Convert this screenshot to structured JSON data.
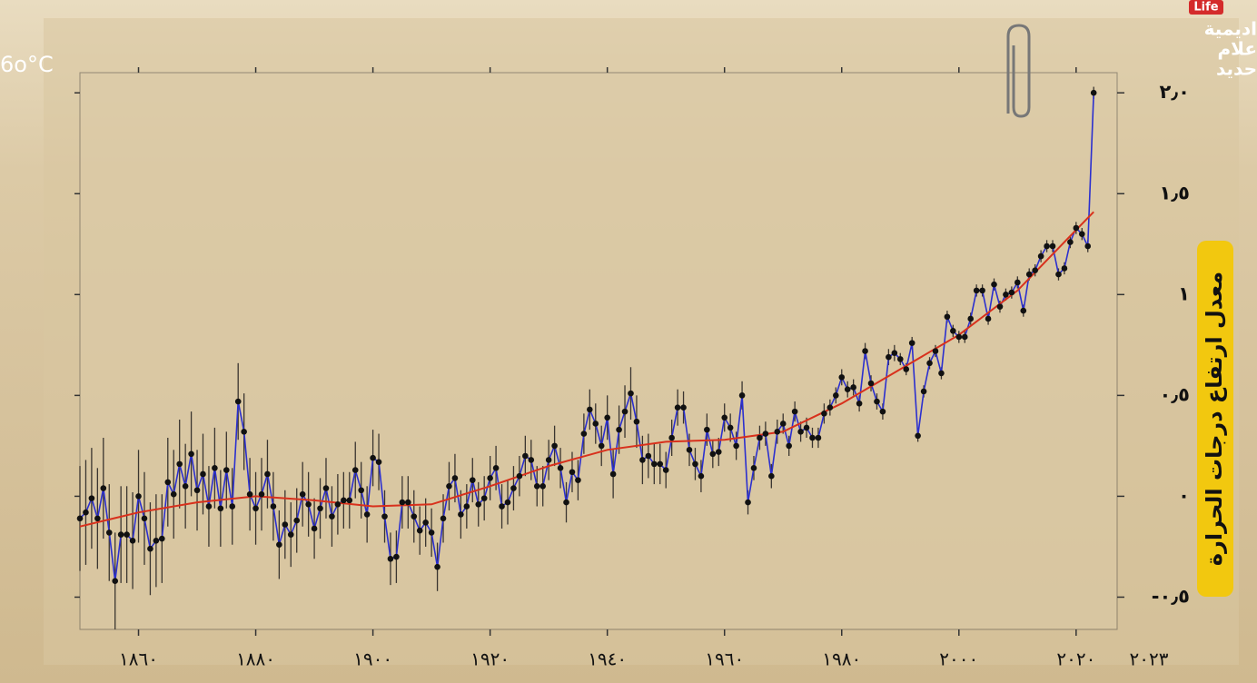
{
  "corner_label": "6o°C",
  "logo": {
    "badge": "Life",
    "lines": [
      "اديمية",
      "علام",
      "حديد"
    ]
  },
  "chart_data": {
    "type": "line",
    "ylabel": "معدل ارتفاع درجات الحرارة",
    "annotations": [
      "٢٠٢٣"
    ],
    "xlim": [
      1850,
      2027
    ],
    "ylim": [
      -0.66,
      2.1
    ],
    "xticks": [
      {
        "value": 1860,
        "label": "١٨٦٠"
      },
      {
        "value": 1880,
        "label": "١٨٨٠"
      },
      {
        "value": 1900,
        "label": "١٩٠٠"
      },
      {
        "value": 1920,
        "label": "١٩٢٠"
      },
      {
        "value": 1940,
        "label": "١٩٤٠"
      },
      {
        "value": 1960,
        "label": "١٩٦٠"
      },
      {
        "value": 1980,
        "label": "١٩٨٠"
      },
      {
        "value": 2000,
        "label": "٢٠٠٠"
      },
      {
        "value": 2020,
        "label": "٢٠٢٠"
      }
    ],
    "yticks": [
      {
        "value": -0.5,
        "label": "-٠٫٥"
      },
      {
        "value": 0,
        "label": "٠"
      },
      {
        "value": 0.5,
        "label": "٠٫٥"
      },
      {
        "value": 1,
        "label": "١"
      },
      {
        "value": 1.5,
        "label": "١٫٥"
      },
      {
        "value": 2,
        "label": "٢٫٠"
      }
    ],
    "series": [
      {
        "color": "#2b2fcf",
        "marker_color": "#111111",
        "error_color": "#3a3530",
        "x": [
          1850,
          1851,
          1852,
          1853,
          1854,
          1855,
          1856,
          1857,
          1858,
          1859,
          1860,
          1861,
          1862,
          1863,
          1864,
          1865,
          1866,
          1867,
          1868,
          1869,
          1870,
          1871,
          1872,
          1873,
          1874,
          1875,
          1876,
          1877,
          1878,
          1879,
          1880,
          1881,
          1882,
          1883,
          1884,
          1885,
          1886,
          1887,
          1888,
          1889,
          1890,
          1891,
          1892,
          1893,
          1894,
          1895,
          1896,
          1897,
          1898,
          1899,
          1900,
          1901,
          1902,
          1903,
          1904,
          1905,
          1906,
          1907,
          1908,
          1909,
          1910,
          1911,
          1912,
          1913,
          1914,
          1915,
          1916,
          1917,
          1918,
          1919,
          1920,
          1921,
          1922,
          1923,
          1924,
          1925,
          1926,
          1927,
          1928,
          1929,
          1930,
          1931,
          1932,
          1933,
          1934,
          1935,
          1936,
          1937,
          1938,
          1939,
          1940,
          1941,
          1942,
          1943,
          1944,
          1945,
          1946,
          1947,
          1948,
          1949,
          1950,
          1951,
          1952,
          1953,
          1954,
          1955,
          1956,
          1957,
          1958,
          1959,
          1960,
          1961,
          1962,
          1963,
          1964,
          1965,
          1966,
          1967,
          1968,
          1969,
          1970,
          1971,
          1972,
          1973,
          1974,
          1975,
          1976,
          1977,
          1978,
          1979,
          1980,
          1981,
          1982,
          1983,
          1984,
          1985,
          1986,
          1987,
          1988,
          1989,
          1990,
          1991,
          1992,
          1993,
          1994,
          1995,
          1996,
          1997,
          1998,
          1999,
          2000,
          2001,
          2002,
          2003,
          2004,
          2005,
          2006,
          2007,
          2008,
          2009,
          2010,
          2011,
          2012,
          2013,
          2014,
          2015,
          2016,
          2017,
          2018,
          2019,
          2020,
          2021,
          2022,
          2023
        ],
        "values": [
          -0.11,
          -0.08,
          -0.01,
          -0.11,
          0.04,
          -0.18,
          -0.42,
          -0.19,
          -0.19,
          -0.22,
          0.0,
          -0.11,
          -0.26,
          -0.22,
          -0.21,
          0.07,
          0.01,
          0.16,
          0.05,
          0.21,
          0.03,
          0.11,
          -0.05,
          0.14,
          -0.06,
          0.13,
          -0.05,
          0.47,
          0.32,
          0.01,
          -0.06,
          0.01,
          0.11,
          -0.05,
          -0.24,
          -0.14,
          -0.19,
          -0.12,
          0.01,
          -0.04,
          -0.16,
          -0.06,
          0.04,
          -0.1,
          -0.04,
          -0.02,
          -0.02,
          0.13,
          0.03,
          -0.09,
          0.19,
          0.17,
          -0.1,
          -0.31,
          -0.3,
          -0.03,
          -0.03,
          -0.1,
          -0.17,
          -0.13,
          -0.18,
          -0.35,
          -0.11,
          0.05,
          0.09,
          -0.09,
          -0.05,
          0.08,
          -0.04,
          -0.01,
          0.09,
          0.14,
          -0.05,
          -0.03,
          0.04,
          0.1,
          0.2,
          0.18,
          0.05,
          0.05,
          0.18,
          0.25,
          0.14,
          -0.03,
          0.12,
          0.08,
          0.31,
          0.43,
          0.36,
          0.25,
          0.39,
          0.11,
          0.33,
          0.42,
          0.51,
          0.37,
          0.18,
          0.2,
          0.16,
          0.16,
          0.13,
          0.29,
          0.44,
          0.44,
          0.23,
          0.16,
          0.1,
          0.33,
          0.21,
          0.22,
          0.39,
          0.34,
          0.25,
          0.5,
          -0.03,
          0.14,
          0.29,
          0.31,
          0.1,
          0.32,
          0.36,
          0.25,
          0.42,
          0.32,
          0.34,
          0.29,
          0.29,
          0.41,
          0.44,
          0.5,
          0.59,
          0.53,
          0.54,
          0.46,
          0.72,
          0.56,
          0.47,
          0.42,
          0.69,
          0.71,
          0.68,
          0.63,
          0.76,
          0.3,
          0.52,
          0.66,
          0.72,
          0.61,
          0.89,
          0.82,
          0.79,
          0.79,
          0.88,
          1.02,
          1.02,
          0.88,
          1.05,
          0.94,
          1.0,
          1.01,
          1.06,
          0.92,
          1.1,
          1.12,
          1.19,
          1.24,
          1.24,
          1.1,
          1.13,
          1.26,
          1.33,
          1.3,
          1.24,
          2.0
        ],
        "errors": [
          0.26,
          0.26,
          0.25,
          0.25,
          0.25,
          0.24,
          0.24,
          0.24,
          0.24,
          0.24,
          0.23,
          0.23,
          0.23,
          0.23,
          0.22,
          0.22,
          0.22,
          0.22,
          0.21,
          0.21,
          0.2,
          0.2,
          0.2,
          0.2,
          0.19,
          0.19,
          0.19,
          0.19,
          0.19,
          0.18,
          0.18,
          0.18,
          0.17,
          0.17,
          0.17,
          0.17,
          0.16,
          0.16,
          0.16,
          0.16,
          0.15,
          0.15,
          0.15,
          0.15,
          0.15,
          0.14,
          0.14,
          0.14,
          0.14,
          0.14,
          0.14,
          0.14,
          0.13,
          0.13,
          0.13,
          0.13,
          0.13,
          0.13,
          0.12,
          0.12,
          0.12,
          0.12,
          0.12,
          0.12,
          0.12,
          0.12,
          0.11,
          0.11,
          0.11,
          0.11,
          0.11,
          0.11,
          0.11,
          0.11,
          0.11,
          0.1,
          0.1,
          0.1,
          0.1,
          0.1,
          0.1,
          0.1,
          0.1,
          0.1,
          0.1,
          0.1,
          0.1,
          0.1,
          0.1,
          0.1,
          0.11,
          0.12,
          0.12,
          0.13,
          0.13,
          0.13,
          0.12,
          0.11,
          0.1,
          0.1,
          0.09,
          0.09,
          0.09,
          0.08,
          0.08,
          0.08,
          0.08,
          0.08,
          0.07,
          0.07,
          0.07,
          0.07,
          0.07,
          0.07,
          0.06,
          0.06,
          0.06,
          0.06,
          0.06,
          0.06,
          0.05,
          0.05,
          0.05,
          0.05,
          0.05,
          0.05,
          0.05,
          0.05,
          0.04,
          0.04,
          0.04,
          0.04,
          0.04,
          0.04,
          0.04,
          0.04,
          0.04,
          0.04,
          0.04,
          0.04,
          0.03,
          0.03,
          0.03,
          0.03,
          0.03,
          0.03,
          0.03,
          0.03,
          0.03,
          0.03,
          0.03,
          0.03,
          0.03,
          0.03,
          0.03,
          0.03,
          0.03,
          0.03,
          0.03,
          0.03,
          0.03,
          0.03,
          0.03,
          0.03,
          0.03,
          0.03,
          0.03,
          0.03,
          0.03,
          0.03,
          0.03,
          0.03,
          0.03,
          0.03
        ]
      },
      {
        "color": "#d8301c",
        "x": [
          1850,
          1860,
          1870,
          1880,
          1890,
          1900,
          1910,
          1920,
          1930,
          1940,
          1950,
          1960,
          1970,
          1980,
          1990,
          2000,
          2010,
          2020,
          2023
        ],
        "values": [
          -0.15,
          -0.08,
          -0.03,
          0.0,
          -0.02,
          -0.05,
          -0.04,
          0.05,
          0.15,
          0.23,
          0.27,
          0.28,
          0.32,
          0.46,
          0.63,
          0.8,
          1.02,
          1.32,
          1.41
        ]
      }
    ]
  }
}
